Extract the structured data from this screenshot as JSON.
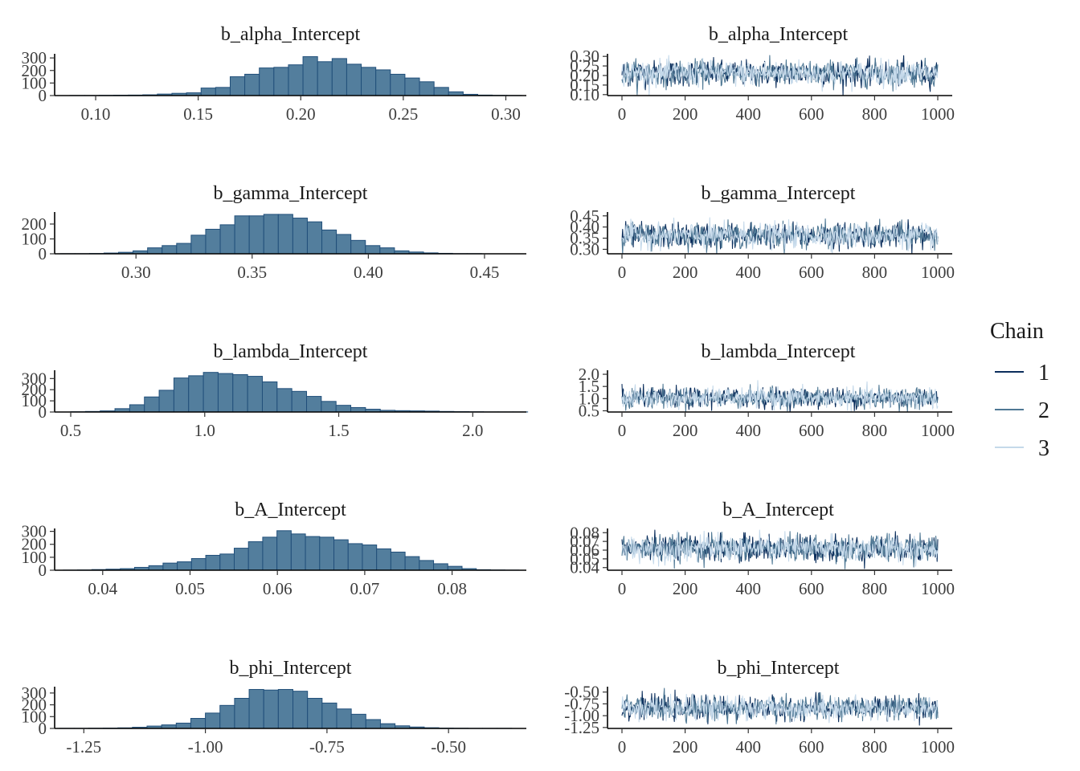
{
  "chart_data": {
    "type": "bar",
    "chain_colors": [
      "#0b2e5c",
      "#4f7894",
      "#c5d9ea"
    ],
    "hist_fill": "#537e9d",
    "hist_stroke": "#214f7a",
    "iteration_ticks": [
      "0",
      "200",
      "400",
      "600",
      "800",
      "1000"
    ],
    "legend": {
      "title": "Chain",
      "entries": [
        "1",
        "2",
        "3"
      ]
    },
    "panels": [
      {
        "parameter": "b_alpha_Intercept",
        "hist": {
          "xlim": [
            0.08,
            0.31
          ],
          "ylim": [
            0,
            320
          ],
          "x_ticks": [
            0.1,
            0.15,
            0.2,
            0.25,
            0.3
          ],
          "x_tick_labels": [
            "0.10",
            "0.15",
            "0.20",
            "0.25",
            "0.30"
          ],
          "y_ticks": [
            0,
            100,
            200,
            300
          ],
          "y_tick_labels": [
            "0",
            "100",
            "200",
            "300"
          ],
          "bin_start": 0.0875,
          "bin_width": 0.0071,
          "counts": [
            1,
            1,
            2,
            3,
            4,
            6,
            12,
            18,
            22,
            60,
            65,
            150,
            170,
            220,
            225,
            245,
            310,
            270,
            295,
            250,
            225,
            205,
            170,
            140,
            110,
            65,
            30,
            10,
            4,
            2,
            1
          ]
        },
        "trace": {
          "ylim": [
            0.095,
            0.305
          ],
          "y_ticks": [
            0.1,
            0.15,
            0.2,
            0.25,
            0.3
          ],
          "y_tick_labels": [
            "0.10",
            "0.15",
            "0.20",
            "0.25",
            "0.30"
          ],
          "center": 0.212,
          "sd": 0.033
        }
      },
      {
        "parameter": "b_gamma_Intercept",
        "hist": {
          "xlim": [
            0.265,
            0.468
          ],
          "ylim": [
            0,
            270
          ],
          "x_ticks": [
            0.3,
            0.35,
            0.4,
            0.45
          ],
          "x_tick_labels": [
            "0.30",
            "0.35",
            "0.40",
            "0.45"
          ],
          "y_ticks": [
            0,
            100,
            200
          ],
          "y_tick_labels": [
            "0",
            "100",
            "200"
          ],
          "bin_start": 0.2675,
          "bin_width": 0.00625,
          "counts": [
            1,
            1,
            2,
            5,
            10,
            20,
            40,
            55,
            70,
            125,
            165,
            195,
            255,
            255,
            265,
            265,
            240,
            215,
            160,
            130,
            90,
            55,
            40,
            20,
            12,
            6,
            3,
            1,
            1
          ]
        },
        "trace": {
          "ylim": [
            0.28,
            0.46
          ],
          "y_ticks": [
            0.3,
            0.35,
            0.4,
            0.45
          ],
          "y_tick_labels": [
            "0.30",
            "0.35",
            "0.40",
            "0.45"
          ],
          "center": 0.362,
          "sd": 0.027
        }
      },
      {
        "parameter": "b_lambda_Intercept",
        "hist": {
          "xlim": [
            0.44,
            2.2
          ],
          "ylim": [
            0,
            360
          ],
          "x_ticks": [
            0.5,
            1.0,
            1.5,
            2.0
          ],
          "x_tick_labels": [
            "0.5",
            "1.0",
            "1.5",
            "2.0"
          ],
          "y_ticks": [
            0,
            100,
            200,
            300
          ],
          "y_tick_labels": [
            "0",
            "100",
            "200",
            "300"
          ],
          "bin_start": 0.5,
          "bin_width": 0.055,
          "counts": [
            2,
            5,
            10,
            30,
            65,
            135,
            195,
            305,
            325,
            355,
            345,
            335,
            320,
            270,
            210,
            185,
            140,
            95,
            60,
            40,
            25,
            15,
            12,
            10,
            8,
            5,
            3,
            2,
            1,
            1,
            1
          ]
        },
        "trace": {
          "ylim": [
            0.45,
            2.1
          ],
          "y_ticks": [
            0.5,
            1.0,
            1.5,
            2.0
          ],
          "y_tick_labels": [
            "0.5",
            "1.0",
            "1.5",
            "2.0"
          ],
          "center": 1.03,
          "sd": 0.2
        }
      },
      {
        "parameter": "b_A_Intercept",
        "hist": {
          "xlim": [
            0.0345,
            0.0885
          ],
          "ylim": [
            0,
            310
          ],
          "x_ticks": [
            0.04,
            0.05,
            0.06,
            0.07,
            0.08
          ],
          "x_tick_labels": [
            "0.04",
            "0.05",
            "0.06",
            "0.07",
            "0.08"
          ],
          "y_ticks": [
            0,
            100,
            200,
            300
          ],
          "y_tick_labels": [
            "0",
            "100",
            "200",
            "300"
          ],
          "bin_start": 0.0355,
          "bin_width": 0.00163,
          "counts": [
            1,
            2,
            5,
            8,
            12,
            22,
            35,
            55,
            65,
            90,
            115,
            125,
            170,
            220,
            255,
            305,
            280,
            260,
            255,
            235,
            205,
            195,
            165,
            140,
            105,
            75,
            50,
            30,
            12,
            4,
            2,
            1
          ]
        },
        "trace": {
          "ylim": [
            0.037,
            0.083
          ],
          "y_ticks": [
            0.04,
            0.05,
            0.06,
            0.07,
            0.08
          ],
          "y_tick_labels": [
            "0.04",
            "0.05",
            "0.06",
            "0.07",
            "0.08"
          ],
          "center": 0.062,
          "sd": 0.0075
        }
      },
      {
        "parameter": "b_phi_Intercept",
        "hist": {
          "xlim": [
            -1.31,
            -0.34
          ],
          "ylim": [
            0,
            340
          ],
          "x_ticks": [
            -1.25,
            -1.0,
            -0.75,
            -0.5
          ],
          "x_tick_labels": [
            "-1.25",
            "-1.00",
            "-0.75",
            "-0.50"
          ],
          "y_ticks": [
            0,
            100,
            200,
            300
          ],
          "y_tick_labels": [
            "0",
            "100",
            "200",
            "300"
          ],
          "bin_start": -1.3,
          "bin_width": 0.03,
          "counts": [
            1,
            1,
            2,
            3,
            5,
            10,
            20,
            30,
            45,
            85,
            130,
            195,
            255,
            330,
            325,
            330,
            315,
            255,
            215,
            165,
            120,
            75,
            40,
            22,
            12,
            6,
            3,
            2,
            1,
            1,
            1
          ]
        },
        "trace": {
          "ylim": [
            -1.27,
            -0.42
          ],
          "y_ticks": [
            -1.25,
            -1.0,
            -0.75,
            -0.5
          ],
          "y_tick_labels": [
            "-1.25",
            "-1.00",
            "-0.75",
            "-0.50"
          ],
          "center": -0.84,
          "sd": 0.12
        }
      }
    ]
  }
}
